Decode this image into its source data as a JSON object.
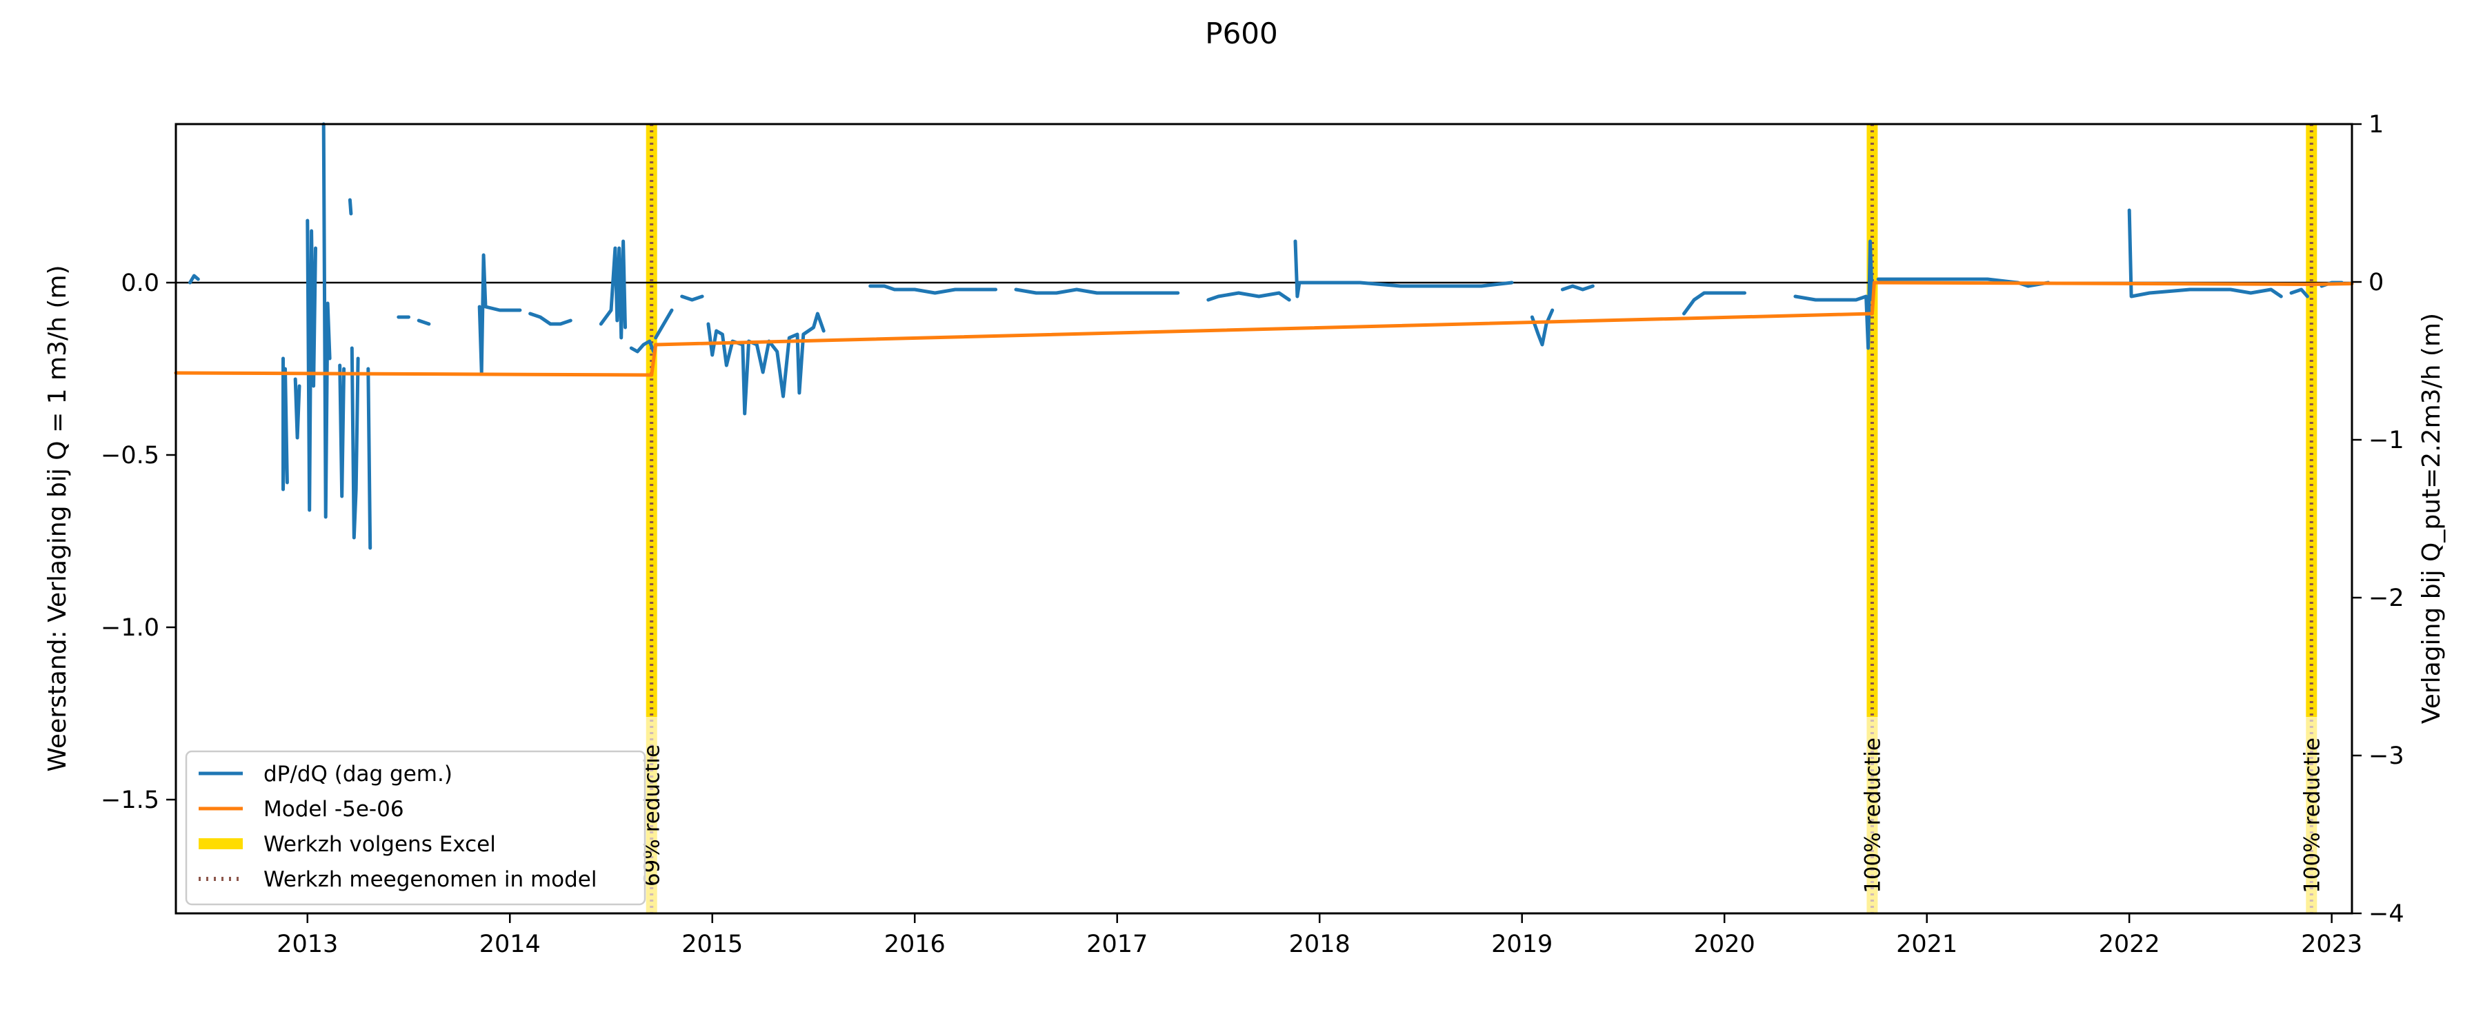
{
  "chart_data": {
    "type": "line",
    "title": "P600",
    "ylabel": "Weerstand: Verlaging bij Q = 1 m3/h (m)",
    "ylabel_right": "Verlaging bij Q_put=2.2m3/h (m)",
    "xlabel": "",
    "xlim": [
      2012.35,
      2023.1
    ],
    "ylim": [
      -1.83,
      0.46
    ],
    "ylim_right": [
      -4,
      1
    ],
    "x_ticks": [
      "2013",
      "2014",
      "2015",
      "2016",
      "2017",
      "2018",
      "2019",
      "2020",
      "2021",
      "2022",
      "2023"
    ],
    "y_ticks": [
      "0.0",
      "−0.5",
      "−1.0",
      "−1.5"
    ],
    "y_ticks_right": [
      "1",
      "0",
      "−1",
      "−2",
      "−3",
      "−4"
    ],
    "zero_line": 0.0,
    "series": [
      {
        "name": "dP/dQ (dag gem.)",
        "color": "#1f77b4",
        "segments": [
          [
            [
              2012.42,
              0.0
            ],
            [
              2012.44,
              0.02
            ],
            [
              2012.46,
              0.01
            ]
          ],
          [
            [
              2012.88,
              -0.22
            ],
            [
              2012.88,
              -0.6
            ],
            [
              2012.89,
              -0.25
            ],
            [
              2012.9,
              -0.58
            ]
          ],
          [
            [
              2012.94,
              -0.28
            ],
            [
              2012.95,
              -0.45
            ],
            [
              2012.96,
              -0.3
            ]
          ],
          [
            [
              2013.0,
              0.18
            ],
            [
              2013.01,
              -0.66
            ],
            [
              2013.02,
              0.15
            ],
            [
              2013.03,
              -0.3
            ],
            [
              2013.04,
              0.1
            ]
          ],
          [
            [
              2013.08,
              0.46
            ],
            [
              2013.09,
              -0.68
            ],
            [
              2013.1,
              -0.06
            ],
            [
              2013.11,
              -0.22
            ]
          ],
          [
            [
              2013.16,
              -0.24
            ],
            [
              2013.17,
              -0.62
            ],
            [
              2013.18,
              -0.25
            ]
          ],
          [
            [
              2013.21,
              0.24
            ],
            [
              2013.215,
              0.2
            ]
          ],
          [
            [
              2013.22,
              -0.19
            ],
            [
              2013.23,
              -0.74
            ],
            [
              2013.24,
              -0.6
            ],
            [
              2013.25,
              -0.22
            ]
          ],
          [
            [
              2013.3,
              -0.25
            ],
            [
              2013.31,
              -0.77
            ]
          ],
          [
            [
              2013.45,
              -0.1
            ],
            [
              2013.5,
              -0.1
            ]
          ],
          [
            [
              2013.55,
              -0.11
            ],
            [
              2013.6,
              -0.12
            ]
          ],
          [
            [
              2013.85,
              -0.07
            ],
            [
              2013.86,
              -0.26
            ],
            [
              2013.87,
              0.08
            ],
            [
              2013.88,
              -0.07
            ],
            [
              2013.95,
              -0.08
            ],
            [
              2014.0,
              -0.08
            ],
            [
              2014.05,
              -0.08
            ]
          ],
          [
            [
              2014.1,
              -0.09
            ],
            [
              2014.15,
              -0.1
            ],
            [
              2014.2,
              -0.12
            ],
            [
              2014.25,
              -0.12
            ],
            [
              2014.3,
              -0.11
            ]
          ],
          [
            [
              2014.45,
              -0.12
            ],
            [
              2014.5,
              -0.08
            ],
            [
              2014.52,
              0.1
            ],
            [
              2014.53,
              -0.11
            ],
            [
              2014.54,
              0.1
            ],
            [
              2014.55,
              -0.16
            ],
            [
              2014.56,
              0.12
            ],
            [
              2014.57,
              -0.13
            ]
          ],
          [
            [
              2014.6,
              -0.19
            ],
            [
              2014.63,
              -0.2
            ],
            [
              2014.66,
              -0.18
            ],
            [
              2014.69,
              -0.17
            ],
            [
              2014.71,
              -0.2
            ]
          ],
          [
            [
              2014.72,
              -0.16
            ],
            [
              2014.76,
              -0.12
            ],
            [
              2014.8,
              -0.08
            ]
          ],
          [
            [
              2014.85,
              -0.04
            ],
            [
              2014.9,
              -0.05
            ],
            [
              2014.95,
              -0.04
            ]
          ],
          [
            [
              2014.98,
              -0.12
            ],
            [
              2015.0,
              -0.21
            ],
            [
              2015.02,
              -0.14
            ],
            [
              2015.05,
              -0.15
            ],
            [
              2015.07,
              -0.24
            ],
            [
              2015.1,
              -0.17
            ],
            [
              2015.15,
              -0.18
            ],
            [
              2015.16,
              -0.38
            ],
            [
              2015.18,
              -0.17
            ],
            [
              2015.22,
              -0.18
            ],
            [
              2015.25,
              -0.26
            ],
            [
              2015.28,
              -0.17
            ],
            [
              2015.32,
              -0.2
            ],
            [
              2015.35,
              -0.33
            ],
            [
              2015.38,
              -0.16
            ],
            [
              2015.42,
              -0.15
            ],
            [
              2015.43,
              -0.32
            ],
            [
              2015.45,
              -0.15
            ],
            [
              2015.5,
              -0.13
            ],
            [
              2015.52,
              -0.09
            ],
            [
              2015.55,
              -0.14
            ]
          ],
          [
            [
              2015.78,
              -0.01
            ],
            [
              2015.85,
              -0.01
            ],
            [
              2015.9,
              -0.02
            ],
            [
              2016.0,
              -0.02
            ],
            [
              2016.1,
              -0.03
            ],
            [
              2016.2,
              -0.02
            ],
            [
              2016.3,
              -0.02
            ],
            [
              2016.4,
              -0.02
            ]
          ],
          [
            [
              2016.5,
              -0.02
            ],
            [
              2016.6,
              -0.03
            ],
            [
              2016.7,
              -0.03
            ],
            [
              2016.8,
              -0.02
            ],
            [
              2016.9,
              -0.03
            ],
            [
              2017.0,
              -0.03
            ],
            [
              2017.1,
              -0.03
            ],
            [
              2017.2,
              -0.03
            ],
            [
              2017.3,
              -0.03
            ]
          ],
          [
            [
              2017.45,
              -0.05
            ],
            [
              2017.5,
              -0.04
            ],
            [
              2017.6,
              -0.03
            ],
            [
              2017.7,
              -0.04
            ],
            [
              2017.8,
              -0.03
            ],
            [
              2017.85,
              -0.05
            ]
          ],
          [
            [
              2017.88,
              0.12
            ],
            [
              2017.89,
              -0.04
            ],
            [
              2017.9,
              0.0
            ],
            [
              2018.0,
              0.0
            ],
            [
              2018.2,
              0.0
            ],
            [
              2018.4,
              -0.01
            ],
            [
              2018.6,
              -0.01
            ],
            [
              2018.8,
              -0.01
            ],
            [
              2018.95,
              0.0
            ]
          ],
          [
            [
              2019.05,
              -0.1
            ],
            [
              2019.08,
              -0.15
            ],
            [
              2019.1,
              -0.18
            ],
            [
              2019.12,
              -0.12
            ],
            [
              2019.15,
              -0.08
            ]
          ],
          [
            [
              2019.2,
              -0.02
            ],
            [
              2019.25,
              -0.01
            ],
            [
              2019.3,
              -0.02
            ],
            [
              2019.35,
              -0.01
            ]
          ],
          [
            [
              2019.8,
              -0.09
            ],
            [
              2019.85,
              -0.05
            ],
            [
              2019.9,
              -0.03
            ],
            [
              2020.0,
              -0.03
            ],
            [
              2020.1,
              -0.03
            ]
          ],
          [
            [
              2020.35,
              -0.04
            ],
            [
              2020.45,
              -0.05
            ],
            [
              2020.55,
              -0.05
            ],
            [
              2020.65,
              -0.05
            ],
            [
              2020.7,
              -0.04
            ],
            [
              2020.71,
              -0.19
            ],
            [
              2020.72,
              0.12
            ],
            [
              2020.73,
              -0.05
            ]
          ],
          [
            [
              2020.76,
              0.01
            ],
            [
              2020.9,
              0.01
            ],
            [
              2021.1,
              0.01
            ],
            [
              2021.3,
              0.01
            ],
            [
              2021.45,
              0.0
            ],
            [
              2021.5,
              -0.01
            ],
            [
              2021.6,
              0.0
            ]
          ],
          [
            [
              2022.0,
              0.21
            ],
            [
              2022.01,
              -0.04
            ],
            [
              2022.1,
              -0.03
            ],
            [
              2022.3,
              -0.02
            ],
            [
              2022.5,
              -0.02
            ],
            [
              2022.6,
              -0.03
            ],
            [
              2022.7,
              -0.02
            ],
            [
              2022.75,
              -0.04
            ]
          ],
          [
            [
              2022.8,
              -0.03
            ],
            [
              2022.85,
              -0.02
            ],
            [
              2022.88,
              -0.04
            ]
          ],
          [
            [
              2022.95,
              -0.01
            ],
            [
              2023.0,
              0.0
            ],
            [
              2023.05,
              0.0
            ]
          ]
        ]
      },
      {
        "name": "Model -5e-06",
        "color": "#ff7f0e",
        "segments": [
          [
            [
              2012.35,
              -0.262
            ],
            [
              2014.7,
              -0.268
            ]
          ],
          [
            [
              2014.7,
              -0.268
            ],
            [
              2014.72,
              -0.18
            ]
          ],
          [
            [
              2014.72,
              -0.18
            ],
            [
              2020.73,
              -0.09
            ]
          ],
          [
            [
              2020.73,
              -0.09
            ],
            [
              2020.74,
              0.0
            ]
          ],
          [
            [
              2020.74,
              0.0
            ],
            [
              2022.9,
              -0.005
            ]
          ],
          [
            [
              2022.9,
              -0.005
            ],
            [
              2023.1,
              -0.003
            ]
          ]
        ]
      }
    ],
    "events": [
      {
        "x": 2014.7,
        "label": "69% reductie"
      },
      {
        "x": 2020.73,
        "label": "100% reductie"
      },
      {
        "x": 2022.9,
        "label": "100% reductie"
      }
    ],
    "legend": {
      "position": "lower-left",
      "entries": [
        {
          "label": "dP/dQ (dag gem.)",
          "color": "#1f77b4",
          "style": "line"
        },
        {
          "label": "Model -5e-06",
          "color": "#ff7f0e",
          "style": "line"
        },
        {
          "label": "Werkzh volgens Excel",
          "color": "#ffdc00",
          "style": "thick"
        },
        {
          "label": "Werkzh meegenomen in model",
          "color": "#8c564b",
          "style": "dotted"
        }
      ]
    }
  }
}
